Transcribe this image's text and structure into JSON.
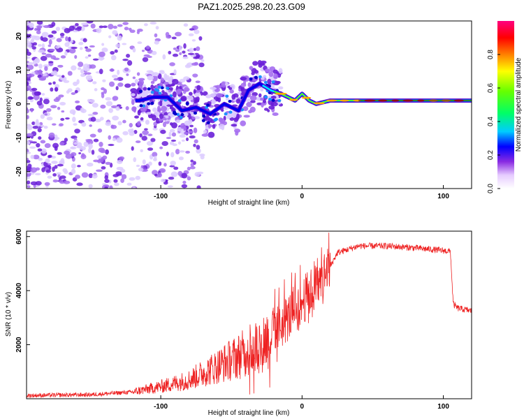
{
  "title": "PAZ1.2025.298.20.23.G09",
  "chart_data": [
    {
      "type": "heatmap",
      "name": "spectrogram",
      "xlabel": "Height of straight line (km)",
      "ylabel": "Frequency (Hz)",
      "xlim": [
        -195,
        120
      ],
      "ylim": [
        -25,
        24.5
      ],
      "xticks": [
        -100,
        0,
        100
      ],
      "xtick_labels": [
        "-100",
        "0",
        "100"
      ],
      "yticks": [
        20,
        10,
        0,
        -10,
        -20
      ],
      "ytick_labels": [
        "20",
        "10",
        "0",
        "-10",
        "-20"
      ],
      "ridge": {
        "x": [
          -115,
          -105,
          -95,
          -85,
          -75,
          -65,
          -55,
          -45,
          -38,
          -30,
          -22,
          -15,
          -10,
          -5,
          0,
          5,
          10,
          20,
          40,
          60,
          80,
          100,
          120
        ],
        "y": [
          1,
          2,
          2,
          -2,
          -1,
          -3,
          0,
          -2,
          4,
          6,
          4,
          3,
          2,
          1,
          3,
          1,
          0,
          1,
          1,
          1,
          1,
          1,
          1
        ]
      },
      "colorbar": {
        "label": "Normalized spectral amplitude",
        "range": [
          0,
          1
        ],
        "ticks": [
          0.0,
          0.2,
          0.4,
          0.6,
          0.8
        ],
        "tick_labels": [
          "0.0",
          "0.2",
          "0.4",
          "0.6",
          "0.8"
        ]
      }
    },
    {
      "type": "line",
      "name": "snr",
      "xlabel": "Height of straight line (km)",
      "ylabel": "SNR (10 * v/v)",
      "xlim": [
        -195,
        120
      ],
      "ylim": [
        0,
        6200
      ],
      "xticks": [
        -100,
        0,
        100
      ],
      "xtick_labels": [
        "-100",
        "0",
        "100"
      ],
      "yticks": [
        2000,
        4000,
        6000
      ],
      "ytick_labels": [
        "2000",
        "4000",
        "6000"
      ],
      "color": "#ee2222",
      "trend": {
        "x": [
          -195,
          -150,
          -120,
          -100,
          -80,
          -60,
          -40,
          -25,
          -15,
          -5,
          5,
          15,
          25,
          40,
          60,
          80,
          100,
          105,
          107,
          110,
          120
        ],
        "y": [
          120,
          150,
          250,
          450,
          700,
          1200,
          1700,
          2200,
          2700,
          3300,
          3900,
          4400,
          5400,
          5650,
          5650,
          5580,
          5480,
          5450,
          3500,
          3350,
          3250
        ]
      }
    }
  ]
}
